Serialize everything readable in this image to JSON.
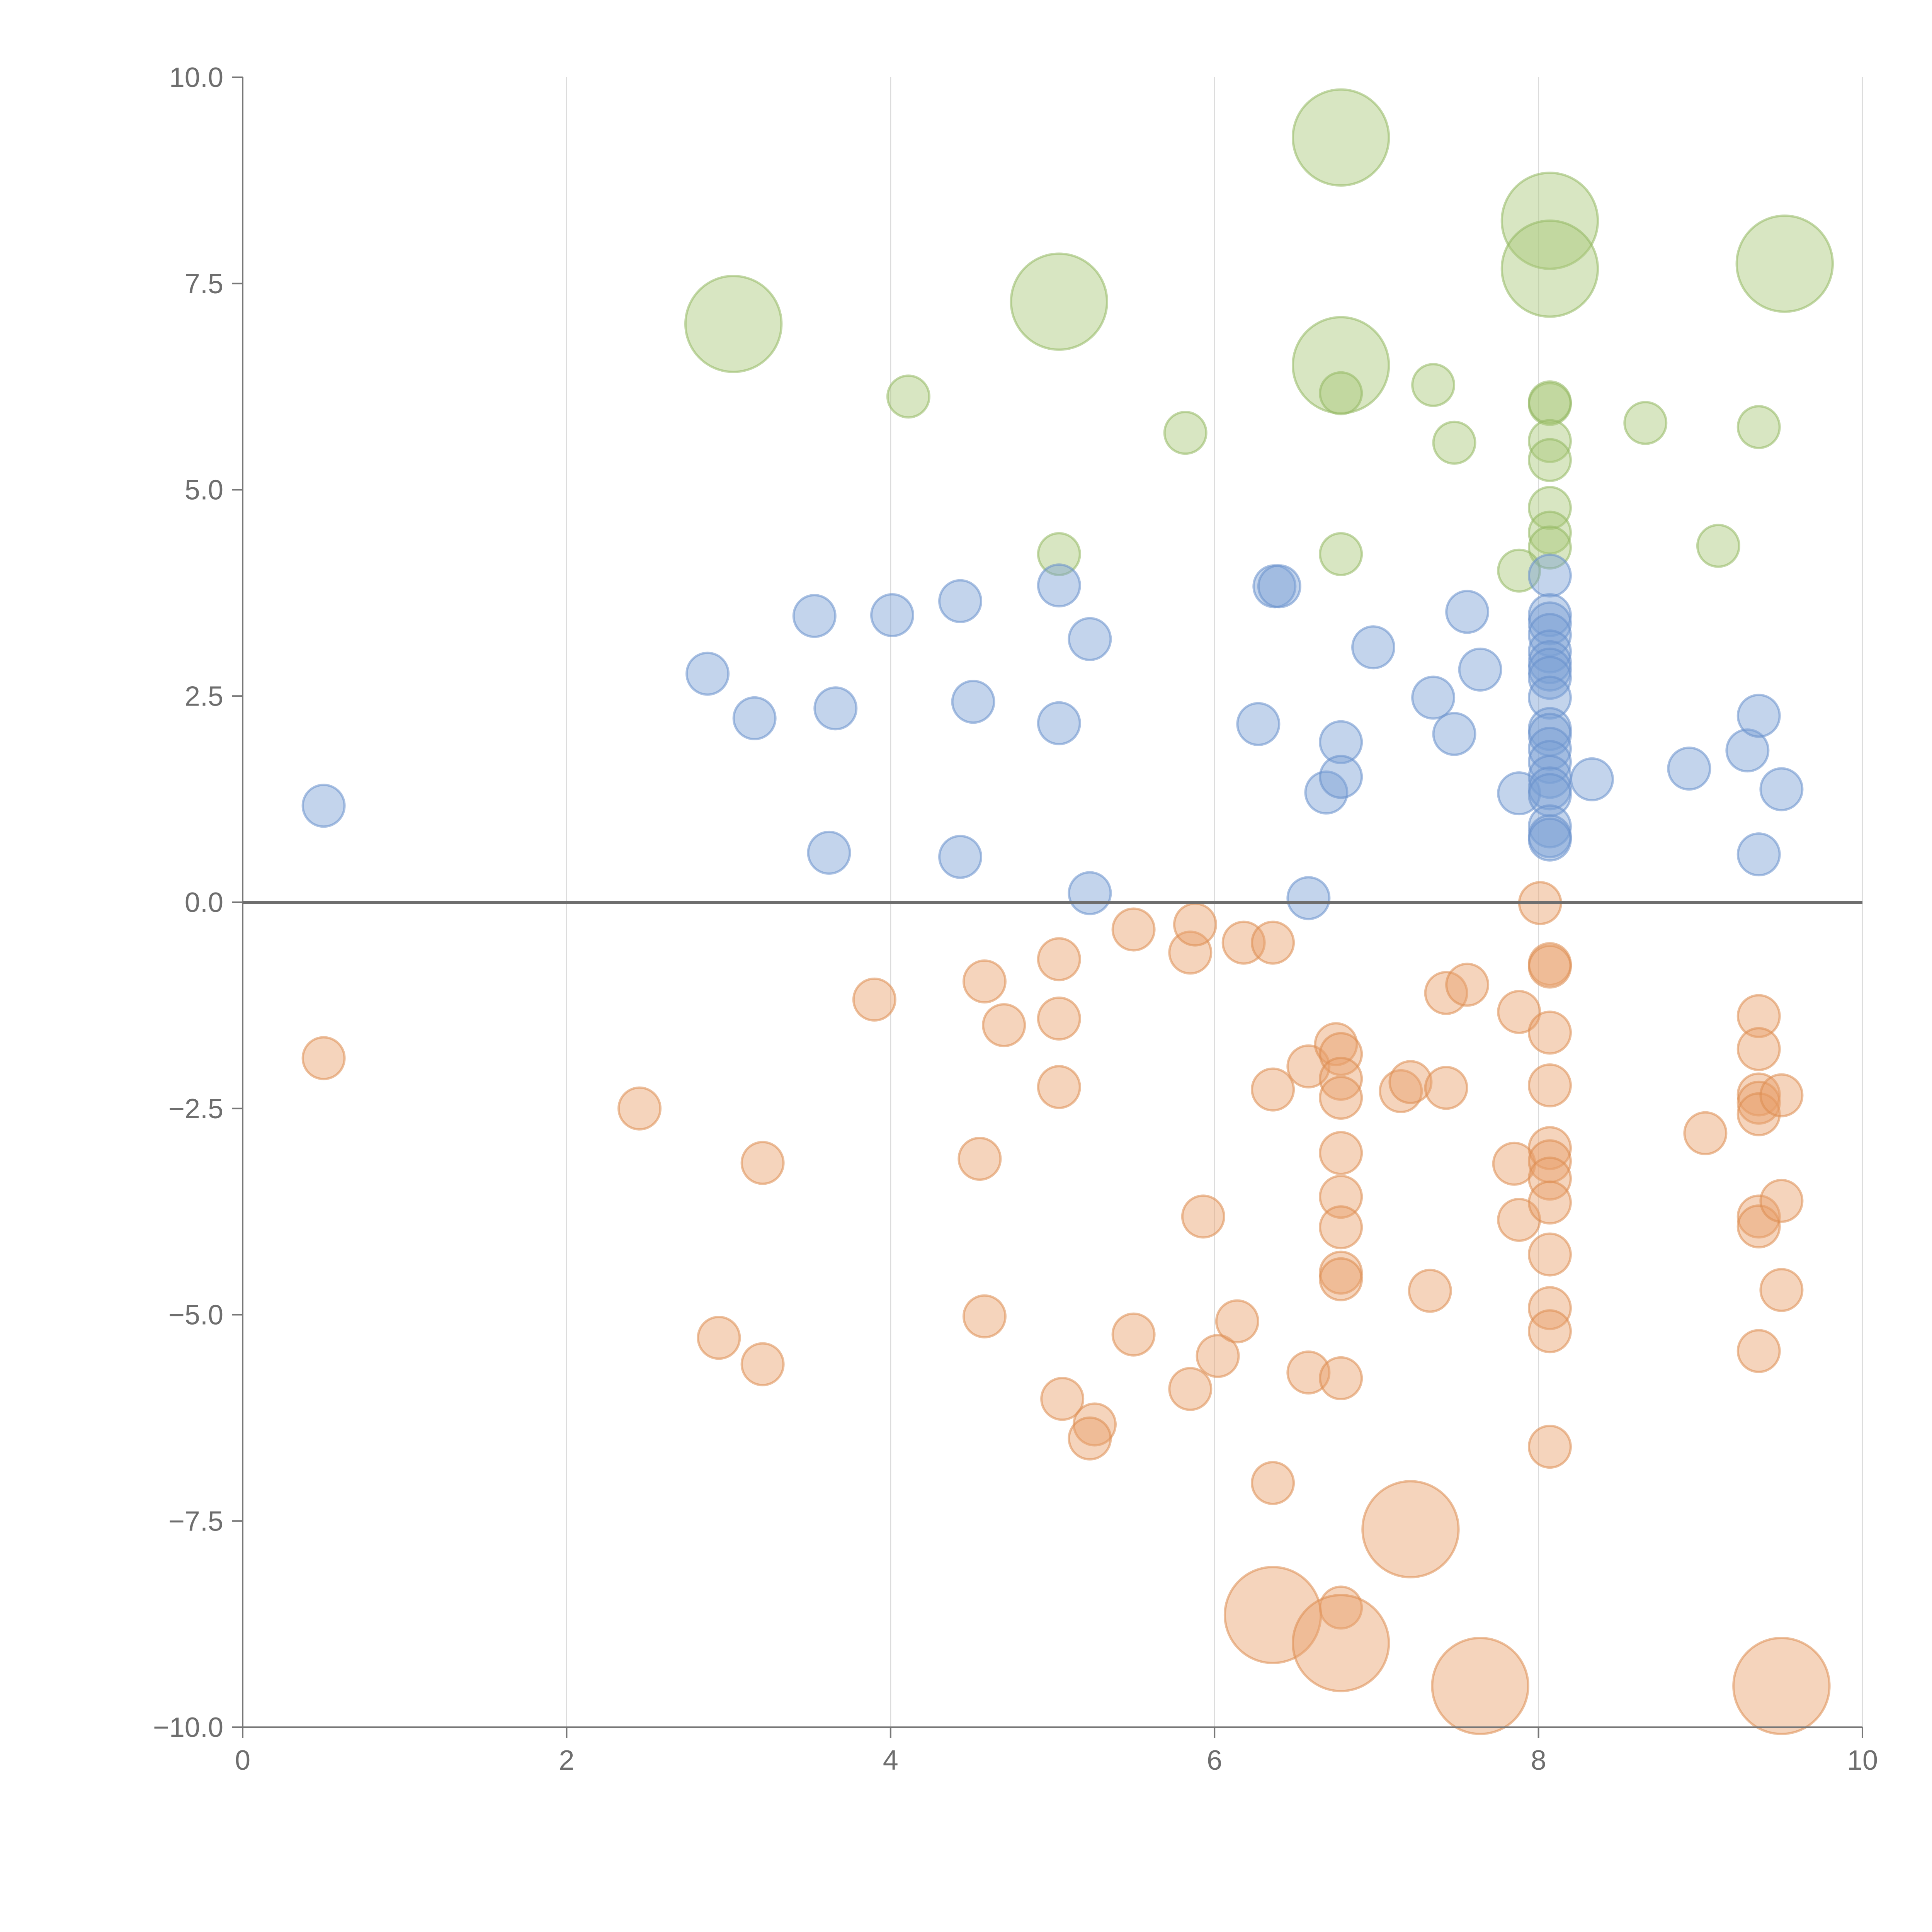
{
  "chart_data": {
    "type": "scatter",
    "title": "",
    "xlabel": "",
    "ylabel": "",
    "xlim": [
      0,
      10
    ],
    "ylim": [
      -10,
      10
    ],
    "x_ticks": [
      0,
      2,
      4,
      6,
      8,
      10
    ],
    "x_tick_labels": [
      "0",
      "2",
      "4",
      "6",
      "8",
      "10"
    ],
    "y_ticks": [
      -10,
      -7.5,
      -5,
      -2.5,
      0,
      2.5,
      5,
      7.5,
      10
    ],
    "y_tick_labels": [
      "−10.0",
      "−7.5",
      "−5.0",
      "−2.5",
      "0.0",
      "2.5",
      "5.0",
      "7.5",
      "10.0"
    ],
    "grid": "vertical",
    "reference_line_y": 0,
    "size_unit_note": "s = relative bubble size (1 = small, 2.3 = large)",
    "series": [
      {
        "name": "green",
        "color": "#a8c878",
        "stroke": "#94b862",
        "points": [
          {
            "x": 6.78,
            "y": 9.27,
            "s": 2.3
          },
          {
            "x": 8.07,
            "y": 8.26,
            "s": 2.3
          },
          {
            "x": 8.07,
            "y": 7.68,
            "s": 2.3
          },
          {
            "x": 9.52,
            "y": 7.74,
            "s": 2.3
          },
          {
            "x": 5.04,
            "y": 7.28,
            "s": 2.3
          },
          {
            "x": 3.03,
            "y": 7.01,
            "s": 2.3
          },
          {
            "x": 6.78,
            "y": 6.51,
            "s": 2.3
          },
          {
            "x": 4.11,
            "y": 6.13,
            "s": 1
          },
          {
            "x": 6.78,
            "y": 6.17,
            "s": 1
          },
          {
            "x": 7.35,
            "y": 6.27,
            "s": 1
          },
          {
            "x": 8.07,
            "y": 6.04,
            "s": 1
          },
          {
            "x": 8.07,
            "y": 6.06,
            "s": 1
          },
          {
            "x": 5.82,
            "y": 5.69,
            "s": 1
          },
          {
            "x": 7.48,
            "y": 5.57,
            "s": 1
          },
          {
            "x": 8.07,
            "y": 5.59,
            "s": 1
          },
          {
            "x": 8.07,
            "y": 5.36,
            "s": 1
          },
          {
            "x": 8.66,
            "y": 5.81,
            "s": 1
          },
          {
            "x": 9.36,
            "y": 5.76,
            "s": 1
          },
          {
            "x": 8.07,
            "y": 4.78,
            "s": 1
          },
          {
            "x": 8.07,
            "y": 4.48,
            "s": 1
          },
          {
            "x": 8.07,
            "y": 4.3,
            "s": 1
          },
          {
            "x": 5.04,
            "y": 4.22,
            "s": 1
          },
          {
            "x": 6.78,
            "y": 4.22,
            "s": 1
          },
          {
            "x": 9.11,
            "y": 4.32,
            "s": 1
          },
          {
            "x": 7.88,
            "y": 4.02,
            "s": 1
          }
        ]
      },
      {
        "name": "blue",
        "color": "#7a9fd4",
        "stroke": "#6890cc",
        "points": [
          {
            "x": 0.5,
            "y": 1.17,
            "s": 1
          },
          {
            "x": 2.87,
            "y": 2.77,
            "s": 1
          },
          {
            "x": 3.16,
            "y": 2.23,
            "s": 1
          },
          {
            "x": 3.53,
            "y": 3.47,
            "s": 1
          },
          {
            "x": 3.66,
            "y": 2.35,
            "s": 1
          },
          {
            "x": 3.62,
            "y": 0.6,
            "s": 1
          },
          {
            "x": 4.01,
            "y": 3.48,
            "s": 1
          },
          {
            "x": 4.43,
            "y": 3.65,
            "s": 1
          },
          {
            "x": 4.51,
            "y": 2.43,
            "s": 1
          },
          {
            "x": 4.43,
            "y": 0.55,
            "s": 1
          },
          {
            "x": 5.04,
            "y": 3.84,
            "s": 1
          },
          {
            "x": 5.23,
            "y": 3.19,
            "s": 1
          },
          {
            "x": 5.04,
            "y": 2.17,
            "s": 1
          },
          {
            "x": 5.23,
            "y": 0.11,
            "s": 1
          },
          {
            "x": 6.37,
            "y": 3.83,
            "s": 1
          },
          {
            "x": 6.4,
            "y": 3.83,
            "s": 1
          },
          {
            "x": 6.27,
            "y": 2.16,
            "s": 1
          },
          {
            "x": 6.58,
            "y": 0.05,
            "s": 1
          },
          {
            "x": 6.69,
            "y": 1.33,
            "s": 1
          },
          {
            "x": 6.78,
            "y": 1.94,
            "s": 1
          },
          {
            "x": 6.78,
            "y": 1.52,
            "s": 1
          },
          {
            "x": 6.98,
            "y": 3.09,
            "s": 1
          },
          {
            "x": 7.35,
            "y": 2.48,
            "s": 1
          },
          {
            "x": 7.48,
            "y": 2.04,
            "s": 1
          },
          {
            "x": 7.56,
            "y": 3.52,
            "s": 1
          },
          {
            "x": 7.64,
            "y": 2.82,
            "s": 1
          },
          {
            "x": 7.88,
            "y": 1.32,
            "s": 1
          },
          {
            "x": 8.07,
            "y": 3.96,
            "s": 1
          },
          {
            "x": 8.07,
            "y": 3.48,
            "s": 1
          },
          {
            "x": 8.07,
            "y": 3.38,
            "s": 1
          },
          {
            "x": 8.07,
            "y": 3.24,
            "s": 1
          },
          {
            "x": 8.07,
            "y": 3.04,
            "s": 1
          },
          {
            "x": 8.07,
            "y": 2.91,
            "s": 1
          },
          {
            "x": 8.07,
            "y": 2.82,
            "s": 1
          },
          {
            "x": 8.07,
            "y": 2.72,
            "s": 1
          },
          {
            "x": 8.07,
            "y": 2.48,
            "s": 1
          },
          {
            "x": 8.07,
            "y": 2.1,
            "s": 1
          },
          {
            "x": 8.07,
            "y": 2.03,
            "s": 1
          },
          {
            "x": 8.07,
            "y": 1.86,
            "s": 1
          },
          {
            "x": 8.07,
            "y": 1.7,
            "s": 1
          },
          {
            "x": 8.07,
            "y": 1.52,
            "s": 1
          },
          {
            "x": 8.07,
            "y": 1.38,
            "s": 1
          },
          {
            "x": 8.07,
            "y": 1.3,
            "s": 1
          },
          {
            "x": 8.07,
            "y": 0.92,
            "s": 1
          },
          {
            "x": 8.07,
            "y": 0.8,
            "s": 1
          },
          {
            "x": 8.07,
            "y": 0.76,
            "s": 1
          },
          {
            "x": 8.33,
            "y": 1.49,
            "s": 1
          },
          {
            "x": 8.93,
            "y": 1.62,
            "s": 1
          },
          {
            "x": 9.29,
            "y": 1.84,
            "s": 1
          },
          {
            "x": 9.36,
            "y": 2.26,
            "s": 1
          },
          {
            "x": 9.5,
            "y": 1.37,
            "s": 1
          },
          {
            "x": 9.36,
            "y": 0.58,
            "s": 1
          }
        ]
      },
      {
        "name": "orange",
        "color": "#e8a06a",
        "stroke": "#dc8c50",
        "points": [
          {
            "x": 0.5,
            "y": -1.89,
            "s": 1
          },
          {
            "x": 2.45,
            "y": -2.5,
            "s": 1
          },
          {
            "x": 3.21,
            "y": -3.16,
            "s": 1
          },
          {
            "x": 2.94,
            "y": -5.28,
            "s": 1
          },
          {
            "x": 3.21,
            "y": -5.6,
            "s": 1
          },
          {
            "x": 3.9,
            "y": -1.18,
            "s": 1
          },
          {
            "x": 4.58,
            "y": -0.96,
            "s": 1
          },
          {
            "x": 4.7,
            "y": -1.49,
            "s": 1
          },
          {
            "x": 4.55,
            "y": -3.11,
            "s": 1
          },
          {
            "x": 4.58,
            "y": -5.02,
            "s": 1
          },
          {
            "x": 5.04,
            "y": -0.69,
            "s": 1
          },
          {
            "x": 5.04,
            "y": -1.41,
            "s": 1
          },
          {
            "x": 5.04,
            "y": -2.24,
            "s": 1
          },
          {
            "x": 5.06,
            "y": -6.02,
            "s": 1
          },
          {
            "x": 5.26,
            "y": -6.33,
            "s": 1
          },
          {
            "x": 5.23,
            "y": -6.5,
            "s": 1
          },
          {
            "x": 5.5,
            "y": -0.33,
            "s": 1
          },
          {
            "x": 5.5,
            "y": -5.24,
            "s": 1
          },
          {
            "x": 5.85,
            "y": -0.61,
            "s": 1
          },
          {
            "x": 5.88,
            "y": -0.27,
            "s": 1
          },
          {
            "x": 5.93,
            "y": -3.81,
            "s": 1
          },
          {
            "x": 5.85,
            "y": -5.9,
            "s": 1
          },
          {
            "x": 6.02,
            "y": -5.5,
            "s": 1
          },
          {
            "x": 6.14,
            "y": -5.08,
            "s": 1
          },
          {
            "x": 6.18,
            "y": -0.49,
            "s": 1
          },
          {
            "x": 6.36,
            "y": -0.49,
            "s": 1
          },
          {
            "x": 6.36,
            "y": -2.27,
            "s": 1
          },
          {
            "x": 6.36,
            "y": -7.04,
            "s": 1
          },
          {
            "x": 6.58,
            "y": -1.99,
            "s": 1
          },
          {
            "x": 6.58,
            "y": -5.7,
            "s": 1
          },
          {
            "x": 6.75,
            "y": -1.72,
            "s": 1
          },
          {
            "x": 6.78,
            "y": -1.84,
            "s": 1
          },
          {
            "x": 6.78,
            "y": -2.14,
            "s": 1
          },
          {
            "x": 6.78,
            "y": -2.37,
            "s": 1
          },
          {
            "x": 6.78,
            "y": -3.04,
            "s": 1
          },
          {
            "x": 6.78,
            "y": -3.57,
            "s": 1
          },
          {
            "x": 6.78,
            "y": -3.94,
            "s": 1
          },
          {
            "x": 6.78,
            "y": -4.49,
            "s": 1
          },
          {
            "x": 6.78,
            "y": -4.57,
            "s": 1
          },
          {
            "x": 6.78,
            "y": -5.77,
            "s": 1
          },
          {
            "x": 6.78,
            "y": -8.55,
            "s": 1
          },
          {
            "x": 7.15,
            "y": -2.29,
            "s": 1
          },
          {
            "x": 7.21,
            "y": -2.18,
            "s": 1
          },
          {
            "x": 7.33,
            "y": -4.71,
            "s": 1
          },
          {
            "x": 7.43,
            "y": -1.1,
            "s": 1
          },
          {
            "x": 7.43,
            "y": -2.25,
            "s": 1
          },
          {
            "x": 7.56,
            "y": -1.0,
            "s": 1
          },
          {
            "x": 7.85,
            "y": -3.17,
            "s": 1
          },
          {
            "x": 7.88,
            "y": -1.33,
            "s": 1
          },
          {
            "x": 7.88,
            "y": -3.85,
            "s": 1
          },
          {
            "x": 8.01,
            "y": -0.01,
            "s": 1
          },
          {
            "x": 8.07,
            "y": -0.75,
            "s": 1
          },
          {
            "x": 8.07,
            "y": -0.78,
            "s": 1
          },
          {
            "x": 8.07,
            "y": -1.58,
            "s": 1
          },
          {
            "x": 8.07,
            "y": -2.22,
            "s": 1
          },
          {
            "x": 8.07,
            "y": -2.98,
            "s": 1
          },
          {
            "x": 8.07,
            "y": -3.14,
            "s": 1
          },
          {
            "x": 8.07,
            "y": -3.35,
            "s": 1
          },
          {
            "x": 8.07,
            "y": -3.64,
            "s": 1
          },
          {
            "x": 8.07,
            "y": -4.27,
            "s": 1
          },
          {
            "x": 8.07,
            "y": -4.92,
            "s": 1
          },
          {
            "x": 8.07,
            "y": -5.2,
            "s": 1
          },
          {
            "x": 8.07,
            "y": -6.6,
            "s": 1
          },
          {
            "x": 9.03,
            "y": -2.8,
            "s": 1
          },
          {
            "x": 9.36,
            "y": -1.38,
            "s": 1
          },
          {
            "x": 9.36,
            "y": -1.78,
            "s": 1
          },
          {
            "x": 9.36,
            "y": -2.33,
            "s": 1
          },
          {
            "x": 9.36,
            "y": -2.43,
            "s": 1
          },
          {
            "x": 9.36,
            "y": -2.57,
            "s": 1
          },
          {
            "x": 9.36,
            "y": -3.81,
            "s": 1
          },
          {
            "x": 9.36,
            "y": -3.93,
            "s": 1
          },
          {
            "x": 9.36,
            "y": -5.44,
            "s": 1
          },
          {
            "x": 9.5,
            "y": -2.34,
            "s": 1
          },
          {
            "x": 9.5,
            "y": -3.62,
            "s": 1
          },
          {
            "x": 9.5,
            "y": -4.7,
            "s": 1
          },
          {
            "x": 7.21,
            "y": -7.6,
            "s": 2.3
          },
          {
            "x": 6.36,
            "y": -8.64,
            "s": 2.3
          },
          {
            "x": 6.78,
            "y": -8.98,
            "s": 2.3
          },
          {
            "x": 7.64,
            "y": -9.5,
            "s": 2.3
          },
          {
            "x": 9.5,
            "y": -9.5,
            "s": 2.3
          }
        ]
      }
    ]
  }
}
